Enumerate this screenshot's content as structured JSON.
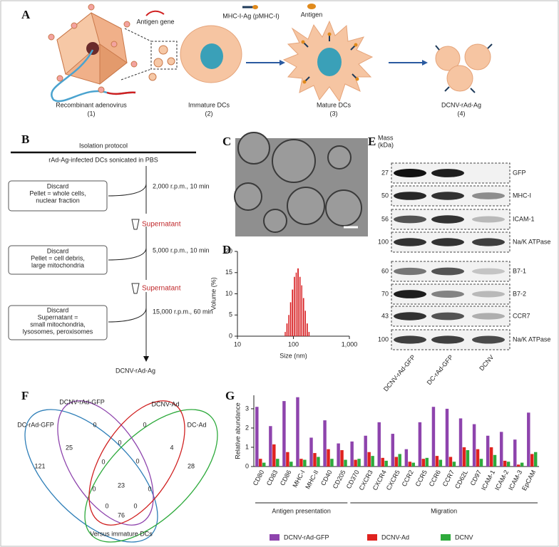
{
  "panel_a": {
    "label": "A",
    "legend": [
      "Antigen gene",
      "MHC-I-Ag (pMHC-I)",
      "Antigen"
    ],
    "steps": [
      {
        "name": "Recombinant adenovirus",
        "number": "(1)"
      },
      {
        "name": "Immature DCs",
        "number": "(2)"
      },
      {
        "name": "Mature DCs",
        "number": "(3)"
      },
      {
        "name": "DCNV-rAd-Ag",
        "number": "(4)"
      }
    ]
  },
  "panel_b": {
    "label": "B",
    "title": "Isolation protocol",
    "start": "rAd-Ag-infected DCs sonicated in PBS",
    "spins": [
      "2,000 r.p.m., 10 min",
      "5,000 r.p.m., 10 min",
      "15,000 r.p.m., 60 min"
    ],
    "discards": [
      [
        "Discard",
        "Pellet = whole cells,",
        "nuclear fraction"
      ],
      [
        "Discard",
        "Pellet = cell debris,",
        "large mitochondria"
      ],
      [
        "Discard",
        "Supernatant =",
        "small mitochondria,",
        "lysosomes, peroxisomes"
      ]
    ],
    "supernatants": [
      "Supernatant",
      "Supernatant"
    ],
    "product": "DCNV-rAd-Ag"
  },
  "panel_c": {
    "label": "C"
  },
  "panel_e": {
    "label": "E",
    "mass_header": [
      "Mass",
      "(kDa)"
    ],
    "rows": [
      {
        "mass": 27,
        "protein": "GFP"
      },
      {
        "mass": 50,
        "protein": "MHC-I"
      },
      {
        "mass": 56,
        "protein": "ICAM-1"
      },
      {
        "mass": 100,
        "protein": "Na/K ATPase"
      },
      {
        "mass": 60,
        "protein": "B7-1"
      },
      {
        "mass": 70,
        "protein": "B7-2"
      },
      {
        "mass": 43,
        "protein": "CCR7"
      },
      {
        "mass": 100,
        "protein": "Na/K ATPase"
      }
    ],
    "lanes": [
      "DCNV-rAd-GFP",
      "DC-rAd-GFP",
      "DCNV"
    ]
  },
  "panel_f": {
    "label": "F",
    "sets": [
      "DC-rAd-GFP",
      "DCNV-rAd-GFP",
      "DCNV-Ad",
      "DC-Ad"
    ],
    "counts": [
      0,
      0,
      25,
      0,
      4,
      121,
      0,
      0,
      28,
      23,
      0,
      0,
      0,
      0,
      76
    ],
    "caption": "Versus immature DCs"
  },
  "chart_data": [
    {
      "type": "histogram",
      "label": "D",
      "xlabel": "Size (nm)",
      "ylabel": "Volume (%)",
      "xscale": "log",
      "bins": [
        70,
        75,
        81,
        87,
        94,
        102,
        110,
        118,
        128,
        138,
        148,
        160,
        172,
        186,
        200
      ],
      "counts": [
        1,
        3,
        5,
        8,
        11,
        14,
        15,
        16,
        14,
        12,
        9,
        6,
        3,
        1
      ],
      "color": "#d7191c",
      "xlim": [
        10,
        1000
      ],
      "xticks": [
        10,
        100,
        {
          "value": 1000,
          "label": "1,000"
        }
      ],
      "ylim": [
        0,
        20
      ],
      "yticks": [
        0,
        5,
        10,
        15,
        20
      ]
    },
    {
      "type": "bar",
      "label": "G",
      "ylabel": "Relative abundance",
      "categories": [
        "CD80",
        "CD83",
        "CD86",
        "MHC-I",
        "MHC-II",
        "CD40",
        "CD205",
        "CD370",
        "CXCR3",
        "CXCR4",
        "CXCR5",
        "CCR2",
        "CCR5",
        "CCR6",
        "CCR7",
        "CD62L",
        "CD97",
        "ICAM-1",
        "ICAM-2",
        "ICAM-3",
        "EpCAM"
      ],
      "group_labels": [
        "Antigen presentation",
        "Migration"
      ],
      "series": [
        {
          "name": "DCNV-rAd-GFP",
          "color": "#8e44ad",
          "values": [
            3.1,
            2.1,
            3.4,
            3.6,
            1.5,
            2.4,
            1.2,
            1.3,
            1.6,
            2.3,
            1.7,
            0.9,
            2.3,
            3.1,
            3.0,
            2.5,
            2.2,
            1.6,
            1.8,
            1.4,
            2.8
          ]
        },
        {
          "name": "DCNV-Ad",
          "color": "#e0221f",
          "values": [
            0.4,
            1.15,
            0.75,
            0.4,
            0.7,
            0.9,
            0.85,
            0.35,
            0.75,
            0.45,
            0.5,
            0.25,
            0.4,
            0.55,
            0.5,
            1.0,
            0.9,
            1.0,
            0.3,
            0.1,
            0.65
          ]
        },
        {
          "name": "DCNV",
          "color": "#2eaa3c",
          "values": [
            0.2,
            0.4,
            0.25,
            0.35,
            0.5,
            0.4,
            0.35,
            0.4,
            0.55,
            0.3,
            0.65,
            0.2,
            0.45,
            0.35,
            0.25,
            0.85,
            0.4,
            0.6,
            0.25,
            0.2,
            0.75
          ]
        }
      ],
      "ylim": [
        0,
        3.7
      ],
      "yticks": [
        0,
        1,
        2,
        3
      ]
    }
  ]
}
